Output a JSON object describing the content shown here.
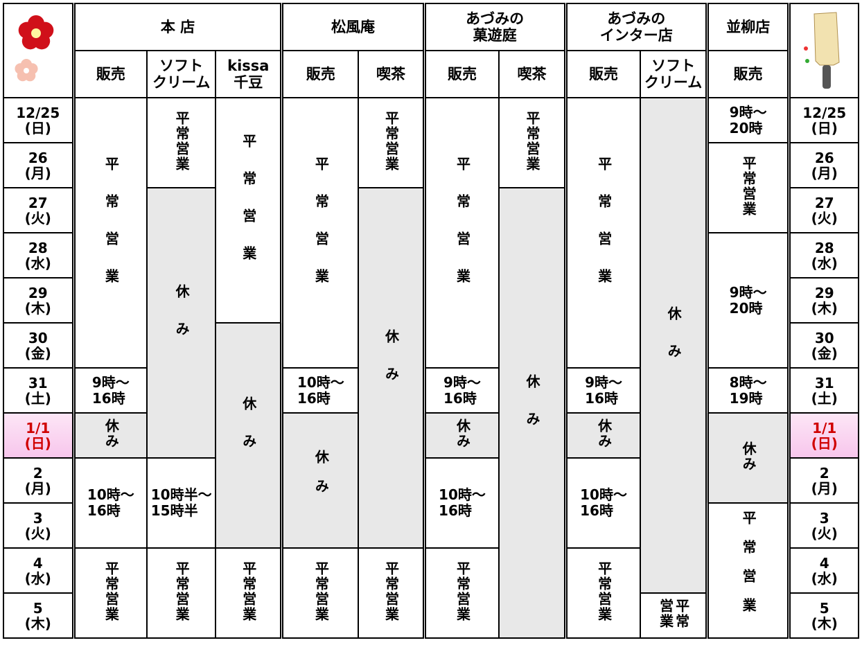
{
  "header": {
    "stores": [
      {
        "name": "本 店",
        "columns": [
          "販売",
          "ソフト\nクリーム",
          "kissa\n千豆"
        ]
      },
      {
        "name": "松風庵",
        "columns": [
          "販売",
          "喫茶"
        ]
      },
      {
        "name": "あづみの\n菓遊庭",
        "columns": [
          "販売",
          "喫茶"
        ]
      },
      {
        "name": "あづみの\nインター店",
        "columns": [
          "販売",
          "ソフト\nクリーム"
        ]
      },
      {
        "name": "並柳店",
        "columns": [
          "販売"
        ]
      }
    ]
  },
  "dates": [
    {
      "day": "12/25",
      "weekday": "(日)"
    },
    {
      "day": "26",
      "weekday": "(月)"
    },
    {
      "day": "27",
      "weekday": "(火)"
    },
    {
      "day": "28",
      "weekday": "(水)"
    },
    {
      "day": "29",
      "weekday": "(木)"
    },
    {
      "day": "30",
      "weekday": "(金)"
    },
    {
      "day": "31",
      "weekday": "(土)"
    },
    {
      "day": "1/1",
      "weekday": "(日)",
      "highlight": true
    },
    {
      "day": "2",
      "weekday": "(月)"
    },
    {
      "day": "3",
      "weekday": "(火)"
    },
    {
      "day": "4",
      "weekday": "(水)"
    },
    {
      "day": "5",
      "weekday": "(木)"
    }
  ],
  "columns": [
    [
      {
        "text": "平常営業",
        "span": 6,
        "vertical": true
      },
      {
        "text": "9時～\n16時",
        "span": 1
      },
      {
        "text": "休み",
        "span": 1,
        "vertical": true,
        "shade": true
      },
      {
        "text": "10時～\n16時",
        "span": 2
      },
      {
        "text": "平常営業",
        "span": 2,
        "vertical": true
      }
    ],
    [
      {
        "text": "平常営業",
        "span": 2,
        "vertical": true
      },
      {
        "text": "休み",
        "span": 6,
        "vertical": true,
        "shade": true
      },
      {
        "text": "10時半～\n15時半",
        "span": 2
      },
      {
        "text": "平常営業",
        "span": 2,
        "vertical": true
      }
    ],
    [
      {
        "text": "平常営業",
        "span": 5,
        "vertical": true
      },
      {
        "text": "休み",
        "span": 5,
        "vertical": true,
        "shade": true
      },
      {
        "text": "平常営業",
        "span": 2,
        "vertical": true
      }
    ],
    [
      {
        "text": "平常営業",
        "span": 6,
        "vertical": true
      },
      {
        "text": "10時～\n16時",
        "span": 1
      },
      {
        "text": "休み",
        "span": 3,
        "vertical": true,
        "shade": true
      },
      {
        "text": "平常営業",
        "span": 2,
        "vertical": true
      }
    ],
    [
      {
        "text": "平常営業",
        "span": 2,
        "vertical": true
      },
      {
        "text": "休み",
        "span": 8,
        "vertical": true,
        "shade": true
      },
      {
        "text": "平常営業",
        "span": 2,
        "vertical": true
      }
    ],
    [
      {
        "text": "平常営業",
        "span": 6,
        "vertical": true
      },
      {
        "text": "9時～\n16時",
        "span": 1
      },
      {
        "text": "休み",
        "span": 1,
        "vertical": true,
        "shade": true
      },
      {
        "text": "10時～\n16時",
        "span": 2
      },
      {
        "text": "平常営業",
        "span": 2,
        "vertical": true
      }
    ],
    [
      {
        "text": "平常営業",
        "span": 2,
        "vertical": true
      },
      {
        "text": "休み",
        "span": 10,
        "vertical": true,
        "shade": true
      }
    ],
    [
      {
        "text": "平常営業",
        "span": 6,
        "vertical": true
      },
      {
        "text": "9時～\n16時",
        "span": 1
      },
      {
        "text": "休み",
        "span": 1,
        "vertical": true,
        "shade": true
      },
      {
        "text": "10時～\n16時",
        "span": 2
      },
      {
        "text": "平常営業",
        "span": 2,
        "vertical": true
      }
    ],
    [
      {
        "text": "休み",
        "span": 11,
        "vertical": true,
        "shade": true
      },
      {
        "text": "平常\n営業",
        "span": 1,
        "vertical": true
      }
    ],
    [
      {
        "text": "9時～\n20時",
        "span": 1
      },
      {
        "text": "平常営業",
        "span": 2,
        "vertical": true
      },
      {
        "text": "9時～\n20時",
        "span": 3
      },
      {
        "text": "8時～\n19時",
        "span": 1
      },
      {
        "text": "休み",
        "span": 2,
        "vertical": true,
        "shade": true
      },
      {
        "text": "平常営業",
        "span": 3,
        "vertical": true
      }
    ]
  ]
}
